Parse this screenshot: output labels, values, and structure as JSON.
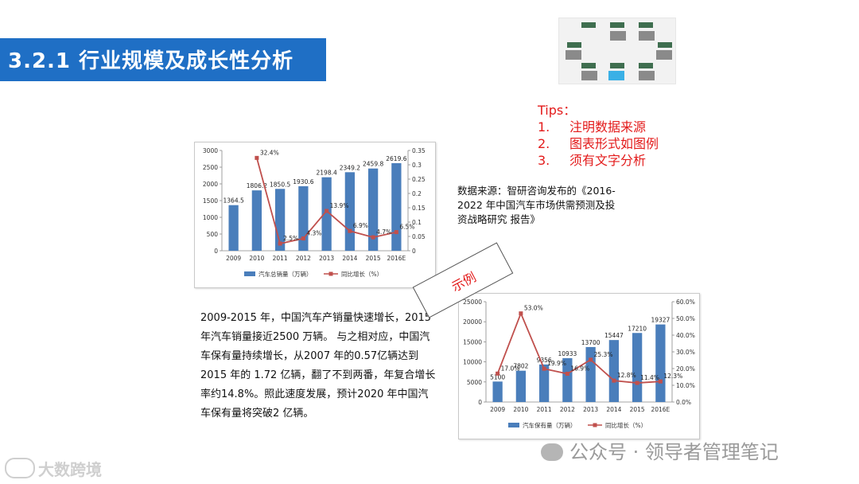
{
  "title": "3.2.1 行业规模及成长性分析",
  "tips": {
    "heading": "Tips：",
    "items": [
      {
        "num": "1.",
        "text": "注明数据来源"
      },
      {
        "num": "2.",
        "text": "图表形式如图例"
      },
      {
        "num": "3.",
        "text": "须有文字分析"
      }
    ]
  },
  "source_note": "数据来源：智研咨询发布的《2016-2022 年中国汽车市场供需预测及投资战略研究 报告》",
  "analysis_text": "2009-2015 年，中国汽车产销量快速增长，2015 年汽车销量接近2500 万辆。 与之相对应，中国汽车保有量持续增长，从2007 年的0.57亿辆达到2015 年的 1.72 亿辆，翻了不到两番，年复合增长 率约14.8%。照此速度发展，预计2020 年中国汽车保有量将突破2 亿辆。",
  "stamp_label": "示例",
  "watermark_right": "公众号 · 领导者管理笔记",
  "watermark_left": "大数跨境",
  "colors": {
    "title_bg": "#1f6fc5",
    "bar": "#4a7ebb",
    "line": "#c0504d",
    "tips": "#e31b1b"
  },
  "chart_data": [
    {
      "type": "bar",
      "categories": [
        "2009",
        "2010",
        "2011",
        "2012",
        "2013",
        "2014",
        "2015",
        "2016E"
      ],
      "series": [
        {
          "name": "汽车总销量（万辆）",
          "type": "bar",
          "axis": "left",
          "values": [
            1364.5,
            1806.2,
            1850.5,
            1930.6,
            2198.4,
            2349.2,
            2459.8,
            2619.6
          ],
          "labels": [
            "1364.5",
            "1806.2",
            "1850.5",
            "1930.6",
            "2198.4",
            "2349.2",
            "2459.8",
            "2619.6"
          ]
        },
        {
          "name": "同比增长（%）",
          "type": "line",
          "axis": "right",
          "values": [
            null,
            0.324,
            0.025,
            0.043,
            0.139,
            0.069,
            0.047,
            0.065
          ],
          "labels": [
            "",
            "32.4%",
            "2.5%",
            "4.3%",
            "13.9%",
            "6.9%",
            "4.7%",
            "6.5%"
          ]
        }
      ],
      "ylim": [
        0,
        3000
      ],
      "yticks": [
        "0",
        "500",
        "1000",
        "1500",
        "2000",
        "2500",
        "3000"
      ],
      "y2lim": [
        0,
        0.35
      ],
      "y2ticks": [
        "0",
        "0.05",
        "0.1",
        "0.15",
        "0.2",
        "0.25",
        "0.3",
        "0.35"
      ],
      "legend": "bottom"
    },
    {
      "type": "bar",
      "categories": [
        "2009",
        "2010",
        "2011",
        "2012",
        "2013",
        "2014",
        "2015",
        "2016E"
      ],
      "series": [
        {
          "name": "汽车保有量（万辆）",
          "type": "bar",
          "axis": "left",
          "values": [
            5100,
            7802,
            9356,
            10933,
            13700,
            15447,
            17210,
            19327
          ],
          "labels": [
            "5100",
            "7802",
            "9356",
            "10933",
            "13700",
            "15447",
            "17210",
            "19327"
          ]
        },
        {
          "name": "同比增长（%）",
          "type": "line",
          "axis": "right",
          "values": [
            17.0,
            53.0,
            19.9,
            16.9,
            25.3,
            12.8,
            11.4,
            12.3
          ],
          "labels": [
            "17.0%",
            "53.0%",
            "19.9%",
            "16.9%",
            "25.3%",
            "12.8%",
            "11.4%",
            "12.3%"
          ]
        }
      ],
      "ylim": [
        0,
        25000
      ],
      "yticks": [
        "0",
        "5000",
        "10000",
        "15000",
        "20000",
        "25000"
      ],
      "y2lim": [
        0,
        60
      ],
      "y2ticks": [
        "0.0%",
        "10.0%",
        "20.0%",
        "30.0%",
        "40.0%",
        "50.0%",
        "60.0%"
      ],
      "legend": "bottom"
    }
  ]
}
